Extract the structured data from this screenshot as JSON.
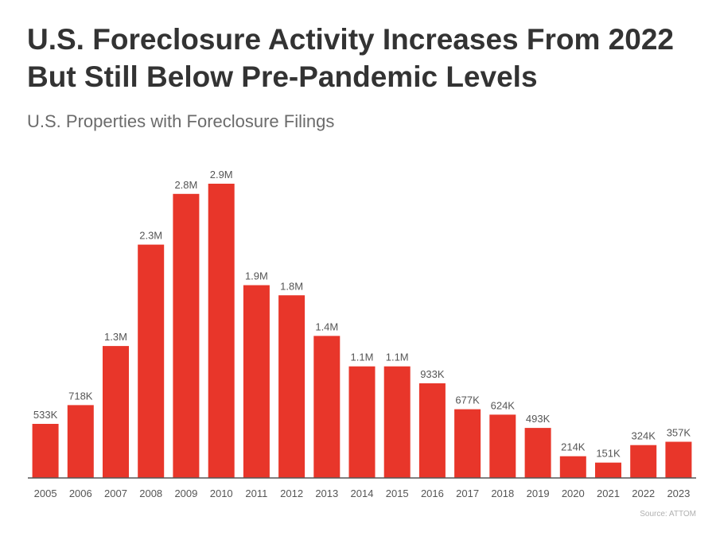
{
  "title": "U.S. Foreclosure Activity Increases From 2022 But Still Below Pre-Pandemic Levels",
  "subtitle": "U.S. Properties with Foreclosure Filings",
  "source": "Source: ATTOM",
  "colors": {
    "bar": "#e8362a",
    "axis": "#555555"
  },
  "chart_data": {
    "type": "bar",
    "title": "U.S. Foreclosure Activity Increases From 2022 But Still Below Pre-Pandemic Levels",
    "subtitle": "U.S. Properties with Foreclosure Filings",
    "xlabel": "",
    "ylabel": "",
    "ylim": [
      0,
      3000000
    ],
    "grid": false,
    "categories": [
      "2005",
      "2006",
      "2007",
      "2008",
      "2009",
      "2010",
      "2011",
      "2012",
      "2013",
      "2014",
      "2015",
      "2016",
      "2017",
      "2018",
      "2019",
      "2020",
      "2021",
      "2022",
      "2023"
    ],
    "values": [
      533000,
      718000,
      1300000,
      2300000,
      2800000,
      2900000,
      1900000,
      1800000,
      1400000,
      1100000,
      1100000,
      933000,
      677000,
      624000,
      493000,
      214000,
      151000,
      324000,
      357000
    ],
    "labels": [
      "533K",
      "718K",
      "1.3M",
      "2.3M",
      "2.8M",
      "2.9M",
      "1.9M",
      "1.8M",
      "1.4M",
      "1.1M",
      "1.1M",
      "933K",
      "677K",
      "624K",
      "493K",
      "214K",
      "151K",
      "324K",
      "357K"
    ]
  }
}
